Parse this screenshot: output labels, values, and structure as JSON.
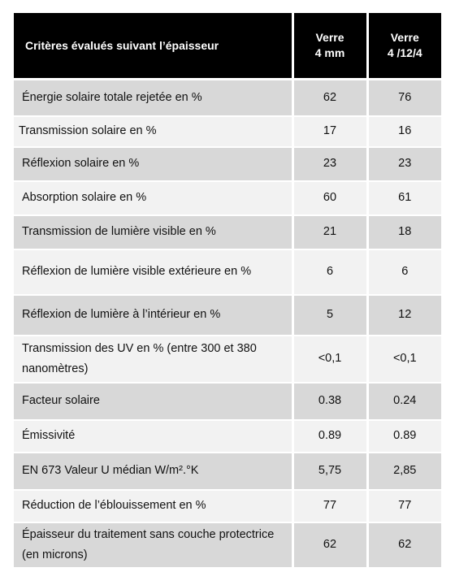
{
  "table": {
    "headers": {
      "criteria": "Critères évalués suivant l’épaisseur",
      "col1_line1": "Verre",
      "col1_line2": "4 mm",
      "col2_line1": "Verre",
      "col2_line2": "4 /12/4"
    },
    "rows": [
      {
        "label": "Énergie solaire totale rejetée en %",
        "v1": "62",
        "v2": "76"
      },
      {
        "label": "Transmission solaire  en %",
        "v1": "17",
        "v2": "16"
      },
      {
        "label": "Réflexion solaire en %",
        "v1": "23",
        "v2": "23"
      },
      {
        "label": "Absorption solaire  en %",
        "v1": "60",
        "v2": "61"
      },
      {
        "label": "Transmission de lumière visible  en %",
        "v1": "21",
        "v2": "18"
      },
      {
        "label": "Réflexion de lumière visible extérieure en %",
        "v1": "6",
        "v2": "6"
      },
      {
        "label": "Réflexion de lumière à l’intérieur en %",
        "v1": "5",
        "v2": "12"
      },
      {
        "label": "Transmission des UV   en % (entre 300 et 380 nanomètres)",
        "v1": "<0,1",
        "v2": "<0,1"
      },
      {
        "label": "Facteur solaire",
        "v1": "0.38",
        "v2": "0.24"
      },
      {
        "label": "Émissivité",
        "v1": "0.89",
        "v2": "0.89"
      },
      {
        "label": "EN 673 Valeur U médian W/m².°K",
        "v1": "5,75",
        "v2": "2,85"
      },
      {
        "label": "Réduction de l’éblouissement en %",
        "v1": "77",
        "v2": "77"
      },
      {
        "label": "Épaisseur du traitement sans couche protectrice  (en microns)",
        "v1": "62",
        "v2": "62"
      }
    ]
  },
  "colors": {
    "header_bg": "#000000",
    "header_text": "#ffffff",
    "row_gray": "#d8d8d8",
    "row_light": "#f2f2f2"
  }
}
